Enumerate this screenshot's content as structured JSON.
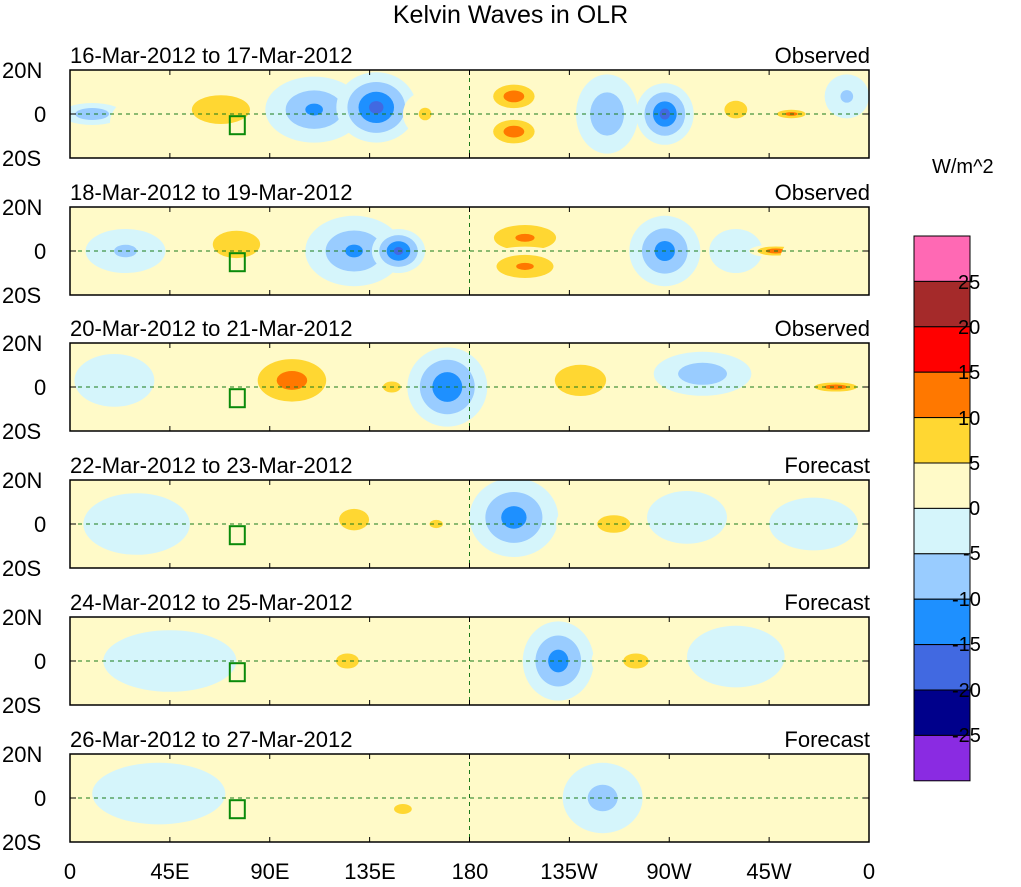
{
  "chart_data": {
    "type": "heatmap",
    "title": "Kelvin Waves in OLR",
    "units": "W/m^2",
    "xlim": [
      0,
      360
    ],
    "ylim": [
      -20,
      20
    ],
    "x_tick_labels": [
      "0",
      "45E",
      "90E",
      "135E",
      "180",
      "135W",
      "90W",
      "45W",
      "0"
    ],
    "y_tick_labels": [
      "20N",
      "0",
      "20S"
    ],
    "colorbar": {
      "levels": [
        -25,
        -20,
        -15,
        -10,
        -5,
        0,
        5,
        10,
        15,
        20,
        25
      ],
      "tick_labels": [
        "25",
        "20",
        "15",
        "10",
        "5",
        "0",
        "-5",
        "-10",
        "-15",
        "-20",
        "-25"
      ],
      "colors": [
        "#8a2be2",
        "#00008b",
        "#4169e1",
        "#1e90ff",
        "#99ccff",
        "#d5f5fb",
        "#fffac8",
        "#ffd732",
        "#ff7800",
        "#ff0000",
        "#a52a2a",
        "#ff69b4"
      ]
    },
    "panels": [
      {
        "date_range": "16-Mar-2012 to 17-Mar-2012",
        "status": "Observed",
        "anomalies": [
          {
            "lon": 10,
            "lat": 0,
            "value": -9,
            "rlon": 14,
            "rlat": 5
          },
          {
            "lon": 38,
            "lat": -4,
            "value": 4,
            "rlon": 20,
            "rlat": 14
          },
          {
            "lon": 68,
            "lat": 2,
            "value": 9,
            "rlon": 24,
            "rlat": 12
          },
          {
            "lon": 110,
            "lat": 2,
            "value": -10,
            "rlon": 22,
            "rlat": 15
          },
          {
            "lon": 138,
            "lat": 3,
            "value": -16,
            "rlon": 18,
            "rlat": 16
          },
          {
            "lon": 160,
            "lat": 0,
            "value": 5,
            "rlon": 10,
            "rlat": 10
          },
          {
            "lon": 200,
            "lat": 8,
            "value": 13,
            "rlon": 14,
            "rlat": 8
          },
          {
            "lon": 200,
            "lat": -8,
            "value": 13,
            "rlon": 14,
            "rlat": 8
          },
          {
            "lon": 242,
            "lat": 0,
            "value": -9,
            "rlon": 14,
            "rlat": 18
          },
          {
            "lon": 268,
            "lat": 0,
            "value": -15,
            "rlon": 13,
            "rlat": 14
          },
          {
            "lon": 300,
            "lat": 2,
            "value": 5,
            "rlon": 18,
            "rlat": 14
          },
          {
            "lon": 325,
            "lat": 0,
            "value": 12,
            "rlon": 10,
            "rlat": 3
          },
          {
            "lon": 350,
            "lat": 8,
            "value": -5,
            "rlon": 10,
            "rlat": 10
          }
        ]
      },
      {
        "date_range": "18-Mar-2012 to 19-Mar-2012",
        "status": "Observed",
        "anomalies": [
          {
            "lon": 25,
            "lat": 0,
            "value": -5,
            "rlon": 18,
            "rlat": 10
          },
          {
            "lon": 75,
            "lat": 3,
            "value": 7,
            "rlon": 24,
            "rlat": 14
          },
          {
            "lon": 128,
            "lat": 0,
            "value": -10,
            "rlon": 22,
            "rlat": 16
          },
          {
            "lon": 148,
            "lat": 0,
            "value": -16,
            "rlon": 12,
            "rlat": 10
          },
          {
            "lon": 205,
            "lat": 6,
            "value": 10,
            "rlon": 24,
            "rlat": 10
          },
          {
            "lon": 205,
            "lat": -7,
            "value": 10,
            "rlon": 22,
            "rlat": 9
          },
          {
            "lon": 268,
            "lat": 0,
            "value": -12,
            "rlon": 16,
            "rlat": 16
          },
          {
            "lon": 300,
            "lat": 0,
            "value": -4,
            "rlon": 12,
            "rlat": 10
          },
          {
            "lon": 318,
            "lat": 0,
            "value": 14,
            "rlon": 12,
            "rlat": 3
          },
          {
            "lon": 340,
            "lat": -4,
            "value": 3,
            "rlon": 20,
            "rlat": 14
          }
        ]
      },
      {
        "date_range": "20-Mar-2012 to 21-Mar-2012",
        "status": "Observed",
        "anomalies": [
          {
            "lon": 20,
            "lat": 3,
            "value": -4,
            "rlon": 18,
            "rlat": 12
          },
          {
            "lon": 100,
            "lat": 3,
            "value": 12,
            "rlon": 24,
            "rlat": 15
          },
          {
            "lon": 145,
            "lat": 0,
            "value": 8,
            "rlon": 8,
            "rlat": 5
          },
          {
            "lon": 170,
            "lat": 0,
            "value": -14,
            "rlon": 18,
            "rlat": 18
          },
          {
            "lon": 230,
            "lat": 3,
            "value": 7,
            "rlon": 26,
            "rlat": 16
          },
          {
            "lon": 285,
            "lat": 6,
            "value": -8,
            "rlon": 22,
            "rlat": 10
          },
          {
            "lon": 345,
            "lat": 0,
            "value": 14,
            "rlon": 14,
            "rlat": 3
          }
        ]
      },
      {
        "date_range": "22-Mar-2012 to 23-Mar-2012",
        "status": "Forecast",
        "anomalies": [
          {
            "lon": 30,
            "lat": 0,
            "value": -4,
            "rlon": 24,
            "rlat": 14
          },
          {
            "lon": 128,
            "lat": 2,
            "value": 6,
            "rlon": 18,
            "rlat": 13
          },
          {
            "lon": 165,
            "lat": 0,
            "value": 6,
            "rlon": 8,
            "rlat": 5
          },
          {
            "lon": 200,
            "lat": 3,
            "value": -12,
            "rlon": 20,
            "rlat": 18
          },
          {
            "lon": 245,
            "lat": 0,
            "value": 5,
            "rlon": 26,
            "rlat": 14
          },
          {
            "lon": 278,
            "lat": 3,
            "value": -4,
            "rlon": 18,
            "rlat": 12
          },
          {
            "lon": 335,
            "lat": 0,
            "value": -4,
            "rlon": 20,
            "rlat": 12
          }
        ]
      },
      {
        "date_range": "24-Mar-2012 to 25-Mar-2012",
        "status": "Forecast",
        "anomalies": [
          {
            "lon": 45,
            "lat": 0,
            "value": -4,
            "rlon": 30,
            "rlat": 14
          },
          {
            "lon": 125,
            "lat": 0,
            "value": 5,
            "rlon": 18,
            "rlat": 12
          },
          {
            "lon": 170,
            "lat": 0,
            "value": 4,
            "rlon": 12,
            "rlat": 10
          },
          {
            "lon": 220,
            "lat": 0,
            "value": -12,
            "rlon": 16,
            "rlat": 18
          },
          {
            "lon": 255,
            "lat": 0,
            "value": 5,
            "rlon": 20,
            "rlat": 12
          },
          {
            "lon": 300,
            "lat": 2,
            "value": -4,
            "rlon": 22,
            "rlat": 14
          },
          {
            "lon": 340,
            "lat": 0,
            "value": 4,
            "rlon": 16,
            "rlat": 8
          }
        ]
      },
      {
        "date_range": "26-Mar-2012 to 27-Mar-2012",
        "status": "Forecast",
        "anomalies": [
          {
            "lon": 40,
            "lat": 2,
            "value": -4,
            "rlon": 30,
            "rlat": 14
          },
          {
            "lon": 95,
            "lat": 0,
            "value": 3,
            "rlon": 16,
            "rlat": 10
          },
          {
            "lon": 150,
            "lat": -5,
            "value": 5,
            "rlon": 14,
            "rlat": 8
          },
          {
            "lon": 200,
            "lat": 0,
            "value": 4,
            "rlon": 16,
            "rlat": 10
          },
          {
            "lon": 240,
            "lat": 0,
            "value": -6,
            "rlon": 18,
            "rlat": 16
          },
          {
            "lon": 295,
            "lat": 0,
            "value": 4,
            "rlon": 24,
            "rlat": 14
          },
          {
            "lon": 345,
            "lat": 0,
            "value": 4,
            "rlon": 14,
            "rlat": 8
          }
        ]
      }
    ]
  }
}
